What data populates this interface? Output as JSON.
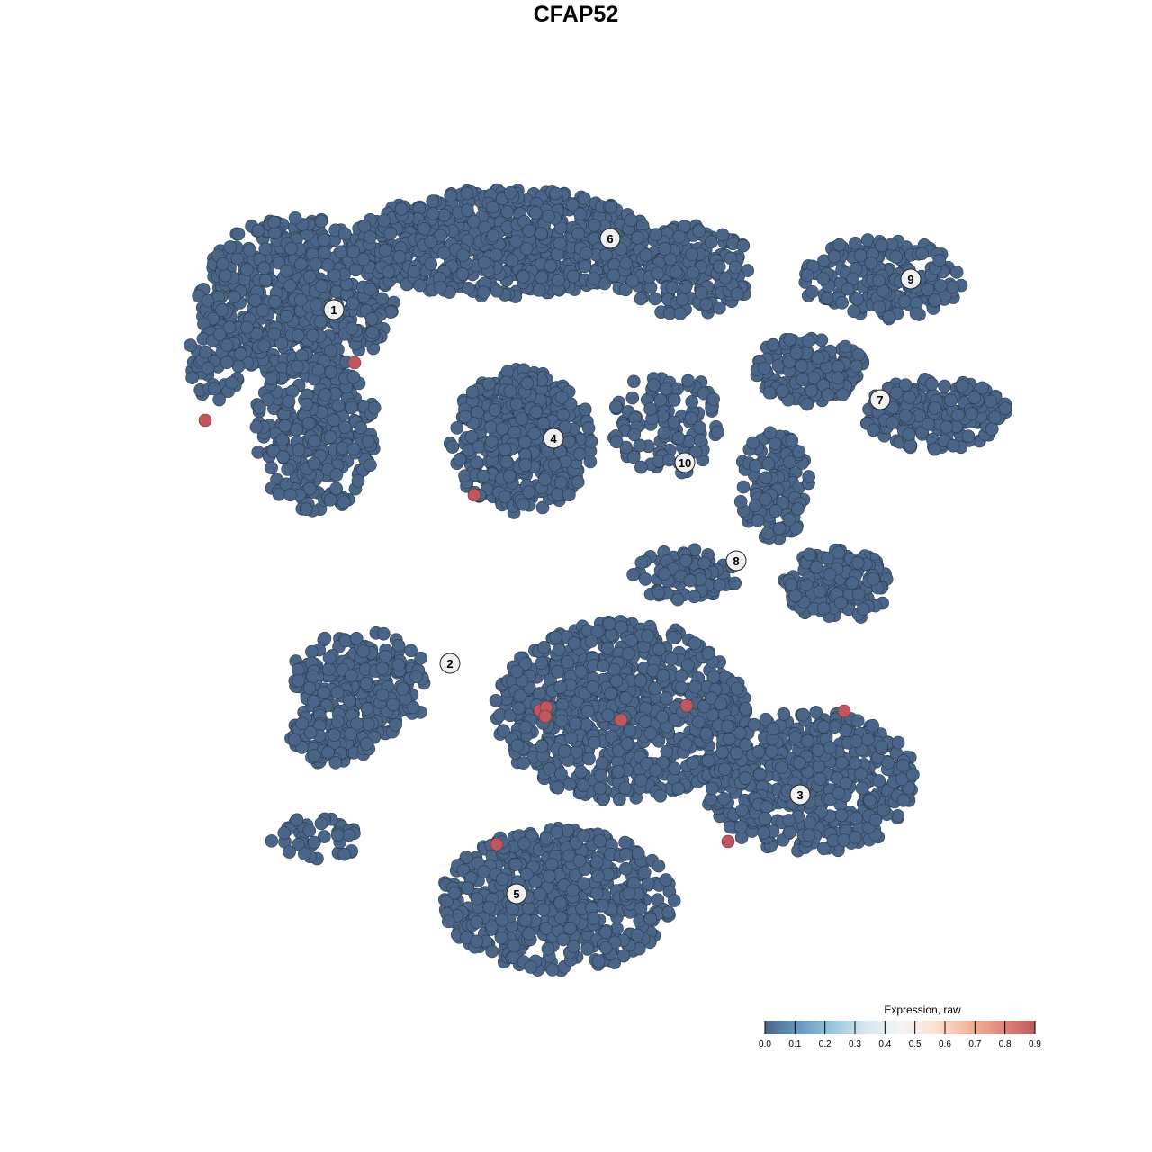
{
  "chart_data": {
    "type": "scatter",
    "title": "CFAP52",
    "xlabel": "",
    "ylabel": "",
    "grid": false,
    "axes_visible": false,
    "xlim": [
      -50,
      50
    ],
    "ylim": [
      -50,
      50
    ],
    "point_color_default": "#4a6587",
    "point_stroke": "#2b3a4e",
    "point_color_high": "#c0575f",
    "background_point_value": 0.0,
    "background_clusters": [
      {
        "x": -31,
        "y": 31,
        "sx": 11,
        "sy": 9,
        "n": 600
      },
      {
        "x": -29,
        "y": 16,
        "sx": 7,
        "sy": 9,
        "n": 300
      },
      {
        "x": -40,
        "y": 24,
        "sx": 3,
        "sy": 5,
        "n": 60
      },
      {
        "x": -8,
        "y": 37,
        "sx": 17,
        "sy": 6,
        "n": 700
      },
      {
        "x": 12,
        "y": 34,
        "sx": 8,
        "sy": 5,
        "n": 200
      },
      {
        "x": -6,
        "y": 15,
        "sx": 8,
        "sy": 8,
        "n": 450
      },
      {
        "x": 10,
        "y": 17,
        "sx": 6,
        "sy": 6,
        "n": 120
      },
      {
        "x": 26,
        "y": 23,
        "sx": 6,
        "sy": 4,
        "n": 150
      },
      {
        "x": 40,
        "y": 18,
        "sx": 8,
        "sy": 4,
        "n": 200
      },
      {
        "x": 34,
        "y": 33,
        "sx": 9,
        "sy": 4.5,
        "n": 200
      },
      {
        "x": 22,
        "y": 10,
        "sx": 4,
        "sy": 6,
        "n": 120
      },
      {
        "x": 29,
        "y": -1,
        "sx": 6,
        "sy": 4,
        "n": 150
      },
      {
        "x": 12,
        "y": 0,
        "sx": 6,
        "sy": 3,
        "n": 100
      },
      {
        "x": -24,
        "y": -12,
        "sx": 8,
        "sy": 6,
        "n": 250
      },
      {
        "x": -27,
        "y": -18,
        "sx": 5,
        "sy": 3,
        "n": 80
      },
      {
        "x": 5,
        "y": -15,
        "sx": 14,
        "sy": 10,
        "n": 800
      },
      {
        "x": 26,
        "y": -23,
        "sx": 12,
        "sy": 8,
        "n": 500
      },
      {
        "x": -2,
        "y": -36,
        "sx": 13,
        "sy": 8,
        "n": 600
      },
      {
        "x": -29,
        "y": -29,
        "sx": 5,
        "sy": 3,
        "n": 40
      }
    ],
    "expressing_points": [
      {
        "x": -24.6,
        "y": 23.7,
        "value": 0.9
      },
      {
        "x": -41.2,
        "y": 17.3,
        "value": 0.9
      },
      {
        "x": -11.3,
        "y": 9.0,
        "value": 0.9
      },
      {
        "x": -4.0,
        "y": -14.9,
        "value": 0.9
      },
      {
        "x": -3.3,
        "y": -14.6,
        "value": 0.9
      },
      {
        "x": -3.4,
        "y": -15.6,
        "value": 0.9
      },
      {
        "x": 5.0,
        "y": -16.0,
        "value": 0.9
      },
      {
        "x": 12.3,
        "y": -14.4,
        "value": 0.9
      },
      {
        "x": 29.8,
        "y": -15.0,
        "value": 0.9
      },
      {
        "x": -8.8,
        "y": -29.8,
        "value": 0.9
      },
      {
        "x": 16.9,
        "y": -29.5,
        "value": 0.9
      }
    ],
    "cluster_labels": [
      {
        "label": "1",
        "x": -26.9,
        "y": 29.6
      },
      {
        "label": "2",
        "x": -14.0,
        "y": -9.7
      },
      {
        "label": "3",
        "x": 24.9,
        "y": -24.3
      },
      {
        "label": "4",
        "x": -2.5,
        "y": 15.3
      },
      {
        "label": "5",
        "x": -6.6,
        "y": -35.3
      },
      {
        "label": "6",
        "x": 3.8,
        "y": 37.5
      },
      {
        "label": "7",
        "x": 33.8,
        "y": 19.6
      },
      {
        "label": "8",
        "x": 17.8,
        "y": 1.7
      },
      {
        "label": "9",
        "x": 37.2,
        "y": 33.0
      },
      {
        "label": "10",
        "x": 12.1,
        "y": 12.6
      }
    ],
    "legend": {
      "title": "Expression, raw",
      "position": "bottom-right",
      "ticks": [
        "0.0",
        "0.1",
        "0.2",
        "0.3",
        "0.4",
        "0.5",
        "0.6",
        "0.7",
        "0.8",
        "0.9"
      ],
      "range": [
        0.0,
        0.9
      ],
      "colors": [
        "#4a6587",
        "#6699c4",
        "#98c6dd",
        "#d6e7f0",
        "#f4f4f4",
        "#fbe2d6",
        "#f4b69c",
        "#e28a7d",
        "#c0575f"
      ]
    }
  }
}
